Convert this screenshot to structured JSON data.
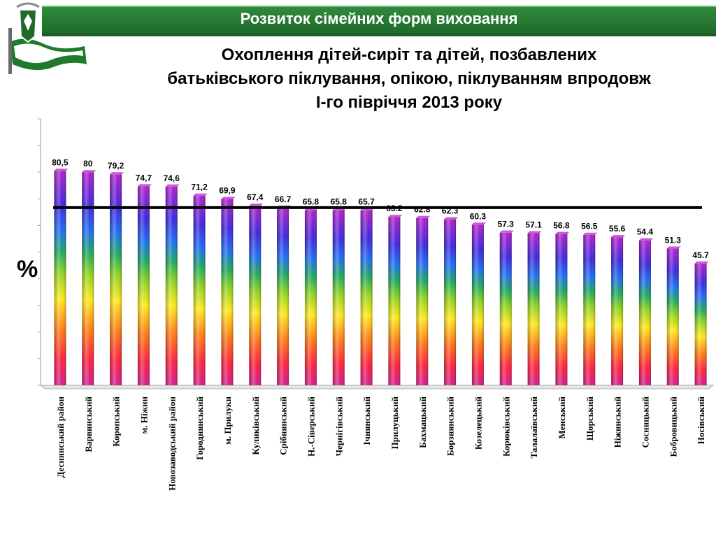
{
  "header": {
    "banner_title": "Розвиток сімейних форм виховання",
    "logo_icon": "coat-of-arms-flag-icon"
  },
  "chart_data": {
    "type": "bar",
    "title": "Охоплення дітей-сиріт та дітей, позбавлених батьківського піклування, опікою, піклуванням впродовж І-го півріччя  2013 року",
    "title_lines": [
      "Охоплення дітей-сиріт та дітей, позбавлених",
      "батьківського піклування, опікою, піклуванням впродовж",
      "І-го півріччя  2013 року"
    ],
    "ylabel": "%",
    "xlabel": "",
    "ylim": [
      0,
      100
    ],
    "grid": false,
    "reference_line": 66.7,
    "bar_fill": "rainbow-gradient",
    "categories": [
      "Деснянський район",
      "Варвинський",
      "Коропський",
      "м. Ніжин",
      "Новозаводський район",
      "Городнянський",
      "м. Прилуки",
      "Куликівський",
      "Срібнянський",
      "Н.-Сіверський",
      "Чернігівський",
      "Ічнянський",
      "Прилуцький",
      "Бахмацький",
      "Борзнянський",
      "Козелецький",
      "Корюківський",
      "Талалаївський",
      "Менський",
      "Щорський",
      "Ніжинський",
      "Сосницький",
      "Бобровицький",
      "Носівський"
    ],
    "values": [
      80.5,
      80,
      79.2,
      74.7,
      74.6,
      71.2,
      69.9,
      67.4,
      66.7,
      65.8,
      65.8,
      65.7,
      63.2,
      62.8,
      62.3,
      60.3,
      57.3,
      57.1,
      56.8,
      56.5,
      55.6,
      54.4,
      51.3,
      45.7
    ],
    "value_labels": [
      "80,5",
      "80",
      "79,2",
      "74,7",
      "74,6",
      "71,2",
      "69,9",
      "67,4",
      "66.7",
      "65.8",
      "65.8",
      "65.7",
      "63.2",
      "62.8",
      "62.3",
      "60.3",
      "57.3",
      "57.1",
      "56.8",
      "56.5",
      "55.6",
      "54.4",
      "51.3",
      "45.7"
    ]
  }
}
